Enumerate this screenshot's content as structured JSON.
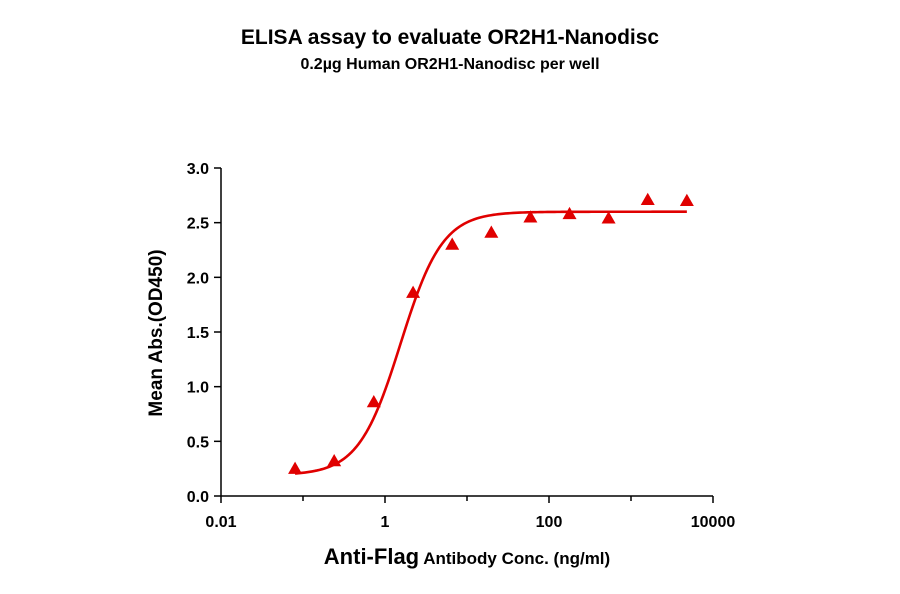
{
  "title": "ELISA assay to evaluate OR2H1-Nanodisc",
  "subtitle": "0.2µg Human OR2H1-Nanodisc per well",
  "chart_data": {
    "type": "scatter",
    "title": "ELISA assay to evaluate OR2H1-Nanodisc",
    "subtitle": "0.2µg Human OR2H1-Nanodisc per well",
    "xlabel_main": "Anti-Flag",
    "xlabel_rest": " Antibody Conc. (ng/ml)",
    "ylabel": "Mean Abs.(OD450)",
    "x_scale": "log",
    "xlim": [
      0.01,
      10000
    ],
    "ylim": [
      0,
      3.0
    ],
    "x_ticks": [
      {
        "value": 0.01,
        "label": "0.01"
      },
      {
        "value": 1,
        "label": "1"
      },
      {
        "value": 100,
        "label": "100"
      },
      {
        "value": 10000,
        "label": "10000"
      }
    ],
    "y_ticks": [
      {
        "value": 0.0,
        "label": "0.0"
      },
      {
        "value": 0.5,
        "label": "0.5"
      },
      {
        "value": 1.0,
        "label": "1.0"
      },
      {
        "value": 1.5,
        "label": "1.5"
      },
      {
        "value": 2.0,
        "label": "2.0"
      },
      {
        "value": 2.5,
        "label": "2.5"
      },
      {
        "value": 3.0,
        "label": "3.0"
      }
    ],
    "series": [
      {
        "marker": "triangle",
        "color": "#e00000",
        "x": [
          0.08,
          0.24,
          0.73,
          2.2,
          6.6,
          19.8,
          59.3,
          178,
          533,
          1600,
          4800
        ],
        "y": [
          0.25,
          0.32,
          0.86,
          1.86,
          2.3,
          2.41,
          2.55,
          2.58,
          2.54,
          2.71,
          2.7
        ]
      }
    ],
    "fit": {
      "model": "4PL",
      "color": "#e00000",
      "bottom": 0.19,
      "top": 2.6,
      "ec50": 1.55,
      "hill": 1.7,
      "x_range": [
        0.08,
        4800
      ]
    },
    "grid": false,
    "legend": "none"
  }
}
